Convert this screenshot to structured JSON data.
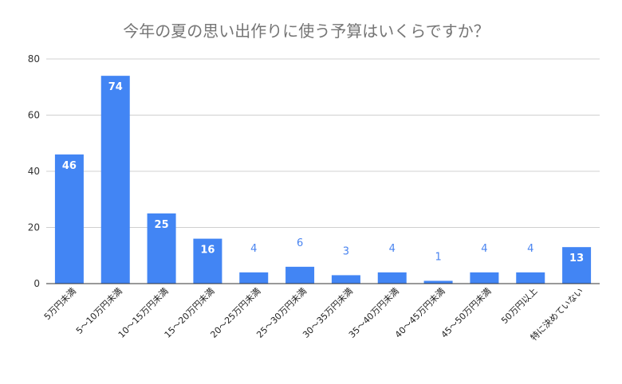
{
  "chart_data": {
    "type": "bar",
    "title": "今年の夏の思い出作りに使う予算はいくらですか？",
    "xlabel": "",
    "ylabel": "",
    "ylim": [
      0,
      80
    ],
    "yticks": [
      "0",
      "20",
      "40",
      "60",
      "80"
    ],
    "grid": true,
    "bar_color": "#4285f4",
    "categories": [
      "5万円未満",
      "5～10万円未満",
      "10～15万円未満",
      "15～20万円未満",
      "20～25万円未満",
      "25～30万円未満",
      "30～35万円未満",
      "35～40万円未満",
      "40～45万円未満",
      "45～50万円未満",
      "50万円以上",
      "特に決めていない"
    ],
    "values": [
      46,
      74,
      25,
      16,
      4,
      6,
      3,
      4,
      1,
      4,
      4,
      13
    ],
    "data_labels": [
      "46",
      "74",
      "25",
      "16",
      "4",
      "6",
      "3",
      "4",
      "1",
      "4",
      "4",
      "13"
    ]
  }
}
